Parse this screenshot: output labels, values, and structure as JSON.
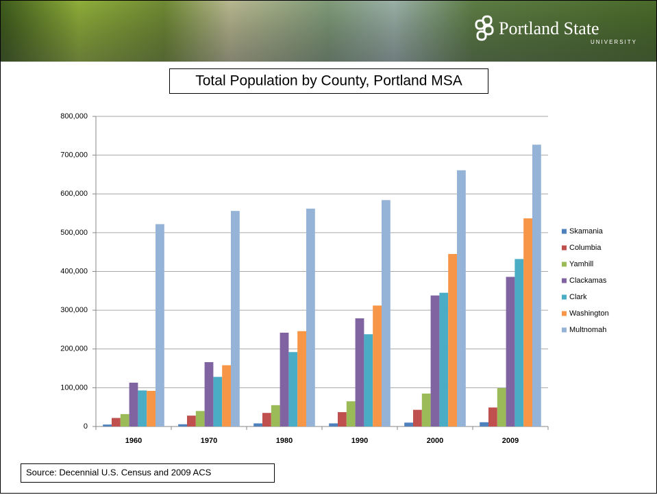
{
  "header": {
    "logo": "Portland State",
    "logo_sub": "UNIVERSITY"
  },
  "chart_data": {
    "type": "bar",
    "title": "Total Population by County, Portland MSA",
    "source": "Source: Decennial U.S. Census and 2009 ACS",
    "categories": [
      "1960",
      "1970",
      "1980",
      "1990",
      "2000",
      "2009"
    ],
    "series": [
      {
        "name": "Skamania",
        "color": "#4f81bd",
        "values": [
          5000,
          5800,
          8000,
          8000,
          10000,
          11000
        ]
      },
      {
        "name": "Columbia",
        "color": "#c0504d",
        "values": [
          22000,
          28000,
          35000,
          37000,
          43000,
          49000
        ]
      },
      {
        "name": "Yamhill",
        "color": "#9bbb59",
        "values": [
          32000,
          40000,
          55000,
          65000,
          85000,
          99000
        ]
      },
      {
        "name": "Clackamas",
        "color": "#8064a2",
        "values": [
          113000,
          166000,
          242000,
          279000,
          338000,
          386000
        ]
      },
      {
        "name": "Clark",
        "color": "#4bacc6",
        "values": [
          93000,
          128000,
          192000,
          238000,
          345000,
          432000
        ]
      },
      {
        "name": "Washington",
        "color": "#f79646",
        "values": [
          92000,
          158000,
          246000,
          312000,
          445000,
          537000
        ]
      },
      {
        "name": "Multnomah",
        "color": "#95b3d7",
        "values": [
          522000,
          556000,
          562000,
          584000,
          661000,
          727000
        ]
      }
    ],
    "ylim": [
      0,
      800000
    ],
    "yticks": [
      0,
      {
        "value": 100000,
        "label": "100,000"
      },
      {
        "value": 200000,
        "label": "200,000"
      },
      {
        "value": 300000,
        "label": "300,000"
      },
      {
        "value": 400000,
        "label": "400,000"
      },
      {
        "value": 500000,
        "label": "500,000"
      },
      {
        "value": 600000,
        "label": "600,000"
      },
      {
        "value": 700000,
        "label": "700,000"
      },
      {
        "value": 800000,
        "label": "800,000"
      }
    ],
    "grid": true,
    "legend": "right"
  }
}
